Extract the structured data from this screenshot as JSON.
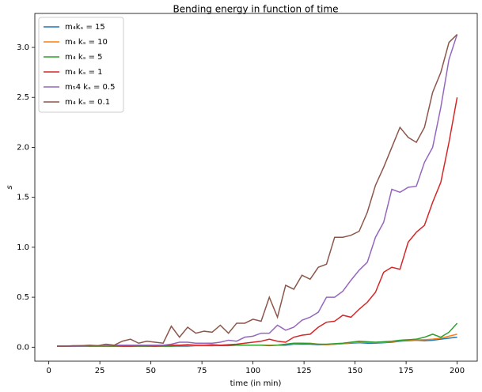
{
  "chart_data": {
    "type": "line",
    "title": "Bending energy in function of time",
    "x_label": "time (in min)",
    "y_label": "s",
    "x": [
      4,
      8,
      12,
      16,
      20,
      24,
      28,
      32,
      36,
      40,
      44,
      48,
      52,
      56,
      60,
      64,
      68,
      72,
      76,
      80,
      84,
      88,
      92,
      96,
      100,
      104,
      108,
      112,
      116,
      120,
      124,
      128,
      132,
      136,
      140,
      144,
      148,
      152,
      156,
      160,
      164,
      168,
      172,
      176,
      180,
      184,
      188,
      192,
      196,
      200
    ],
    "series": [
      {
        "name": "m₄kₛ = 15",
        "color": "#1f77b4",
        "values": [
          0.01,
          0.01,
          0.01,
          0.01,
          0.01,
          0.01,
          0.01,
          0.01,
          0.01,
          0.01,
          0.01,
          0.01,
          0.01,
          0.01,
          0.01,
          0.01,
          0.01,
          0.015,
          0.015,
          0.015,
          0.015,
          0.015,
          0.02,
          0.02,
          0.02,
          0.02,
          0.02,
          0.02,
          0.02,
          0.03,
          0.03,
          0.03,
          0.025,
          0.025,
          0.03,
          0.035,
          0.04,
          0.045,
          0.04,
          0.04,
          0.045,
          0.05,
          0.06,
          0.065,
          0.07,
          0.065,
          0.07,
          0.08,
          0.09,
          0.1
        ]
      },
      {
        "name": "m₄ kₛ = 10",
        "color": "#ff7f0e",
        "values": [
          0.01,
          0.01,
          0.01,
          0.01,
          0.01,
          0.01,
          0.01,
          0.01,
          0.01,
          0.01,
          0.01,
          0.01,
          0.01,
          0.01,
          0.01,
          0.015,
          0.015,
          0.015,
          0.015,
          0.015,
          0.02,
          0.02,
          0.02,
          0.02,
          0.02,
          0.02,
          0.02,
          0.02,
          0.03,
          0.035,
          0.04,
          0.04,
          0.03,
          0.025,
          0.03,
          0.035,
          0.045,
          0.05,
          0.05,
          0.045,
          0.05,
          0.055,
          0.065,
          0.07,
          0.075,
          0.075,
          0.08,
          0.09,
          0.11,
          0.13
        ]
      },
      {
        "name": "m₄ kₛ = 5",
        "color": "#2ca02c",
        "values": [
          0.01,
          0.01,
          0.01,
          0.01,
          0.01,
          0.01,
          0.01,
          0.01,
          0.01,
          0.01,
          0.01,
          0.01,
          0.01,
          0.01,
          0.01,
          0.015,
          0.02,
          0.02,
          0.02,
          0.015,
          0.02,
          0.02,
          0.02,
          0.02,
          0.02,
          0.02,
          0.015,
          0.02,
          0.03,
          0.04,
          0.04,
          0.035,
          0.03,
          0.03,
          0.035,
          0.04,
          0.05,
          0.06,
          0.055,
          0.05,
          0.055,
          0.06,
          0.07,
          0.075,
          0.08,
          0.1,
          0.13,
          0.1,
          0.15,
          0.24
        ]
      },
      {
        "name": "m₄ kₛ = 1",
        "color": "#d62728",
        "values": [
          0.01,
          0.01,
          0.01,
          0.015,
          0.015,
          0.015,
          0.015,
          0.015,
          0.01,
          0.01,
          0.015,
          0.015,
          0.01,
          0.015,
          0.02,
          0.02,
          0.025,
          0.02,
          0.02,
          0.025,
          0.02,
          0.025,
          0.03,
          0.04,
          0.05,
          0.06,
          0.08,
          0.06,
          0.05,
          0.1,
          0.12,
          0.13,
          0.2,
          0.25,
          0.26,
          0.32,
          0.3,
          0.38,
          0.45,
          0.55,
          0.75,
          0.8,
          0.78,
          1.05,
          1.15,
          1.22,
          1.45,
          1.65,
          2.05,
          2.5
        ]
      },
      {
        "name": "m₅4  kₛ = 0.5",
        "color": "#9467bd",
        "values": [
          0.01,
          0.01,
          0.01,
          0.01,
          0.015,
          0.015,
          0.015,
          0.02,
          0.02,
          0.02,
          0.02,
          0.02,
          0.02,
          0.02,
          0.03,
          0.05,
          0.05,
          0.04,
          0.04,
          0.04,
          0.05,
          0.07,
          0.06,
          0.1,
          0.11,
          0.14,
          0.14,
          0.22,
          0.17,
          0.2,
          0.27,
          0.3,
          0.35,
          0.5,
          0.5,
          0.56,
          0.67,
          0.77,
          0.85,
          1.1,
          1.25,
          1.58,
          1.55,
          1.6,
          1.61,
          1.85,
          2.0,
          2.4,
          2.88,
          3.13
        ]
      },
      {
        "name": "m₄ kₛ = 0.1",
        "color": "#8c564b",
        "values": [
          0.01,
          0.01,
          0.015,
          0.015,
          0.02,
          0.015,
          0.03,
          0.02,
          0.06,
          0.08,
          0.04,
          0.06,
          0.05,
          0.04,
          0.21,
          0.1,
          0.2,
          0.14,
          0.16,
          0.15,
          0.22,
          0.14,
          0.24,
          0.24,
          0.28,
          0.26,
          0.5,
          0.3,
          0.62,
          0.58,
          0.72,
          0.68,
          0.8,
          0.83,
          1.1,
          1.1,
          1.12,
          1.16,
          1.35,
          1.62,
          1.8,
          2.0,
          2.2,
          2.1,
          2.05,
          2.2,
          2.55,
          2.75,
          3.05,
          3.13
        ]
      }
    ],
    "xlim": [
      -6.85,
      209.85
    ],
    "ylim": [
      -0.14,
      3.34
    ],
    "xticks": [
      0,
      25,
      50,
      75,
      100,
      125,
      150,
      175,
      200
    ],
    "yticks": [
      {
        "value": 0,
        "label": "0.0"
      },
      0.5,
      {
        "value": 1,
        "label": "1.0"
      },
      1.5,
      {
        "value": 2,
        "label": "2.0"
      },
      2.5,
      {
        "value": 3,
        "label": "3.0"
      }
    ],
    "legend": "upper left",
    "grid": false
  }
}
